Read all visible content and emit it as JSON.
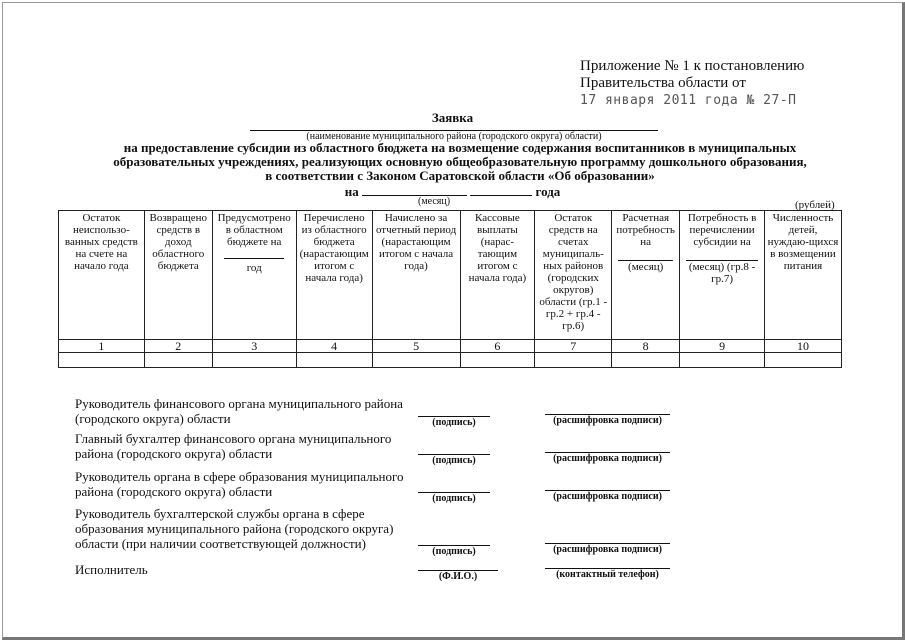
{
  "appendix": {
    "line1": "Приложение № 1 к постановлению",
    "line2": "Правительства области от",
    "date": "17 января 2011 года № 27-П"
  },
  "title": "Заявка",
  "name_caption": "(наименование муниципального района (городского округа) области)",
  "purpose": [
    "на предоставление субсидии из областного бюджета на возмещение содержания воспитанников в муниципальных",
    "образовательных учреждениях, реализующих основную общеобразовательную программу дошкольного образования,",
    "в соответствии с Законом Саратовской области «Об образовании»"
  ],
  "period": {
    "prefix": "на",
    "suffix": "года",
    "month_caption": "(месяц)"
  },
  "units": "(рублей)",
  "table": {
    "headers": [
      "Остаток неиспользо-ванных средств на счете на начало года",
      "Возвращено средств в доход областного бюджета",
      "Предусмотрено в областном бюджете на",
      "Перечислено из областного бюджета (нарастающим итогом с начала года)",
      "Начислено за отчетный период (нарастающим итогом с начала года)",
      "Кассовые выплаты (нарас-тающим итогом с начала года)",
      "Остаток средств на счетах муниципаль-ных районов (городских округов) области (гр.1 - гр.2 + гр.4 - гр.6)",
      "Расчетная потребность на",
      "Потребность в перечислении субсидии на",
      "Численность детей, нуждаю-щихся в возмещении питания"
    ],
    "header_sub": {
      "col3": "год",
      "col8": "(месяц)",
      "col9": "(месяц) (гр.8 - гр.7)"
    },
    "numbers": [
      "1",
      "2",
      "3",
      "4",
      "5",
      "6",
      "7",
      "8",
      "9",
      "10"
    ]
  },
  "signatures": [
    {
      "text": [
        "Руководитель финансового органа муниципального района",
        "(городского округа) области"
      ],
      "left": "(подпись)",
      "right": "(расшифровка подписи)"
    },
    {
      "text": [
        "Главный бухгалтер финансового органа муниципального",
        "района (городского округа) области"
      ],
      "left": "(подпись)",
      "right": "(расшифровка подписи)"
    },
    {
      "text": [
        "Руководитель органа в сфере образования муниципального",
        "района (городского округа) области"
      ],
      "left": "(подпись)",
      "right": "(расшифровка подписи)"
    },
    {
      "text": [
        "Руководитель бухгалтерской службы органа в сфере",
        "образования муниципального района (городского округа)",
        "области (при наличии соответствующей должности)"
      ],
      "left": "(подпись)",
      "right": "(расшифровка подписи)"
    },
    {
      "text": [
        "Исполнитель"
      ],
      "left": "(Ф.И.О.)",
      "right": "(контактный телефон)"
    }
  ]
}
